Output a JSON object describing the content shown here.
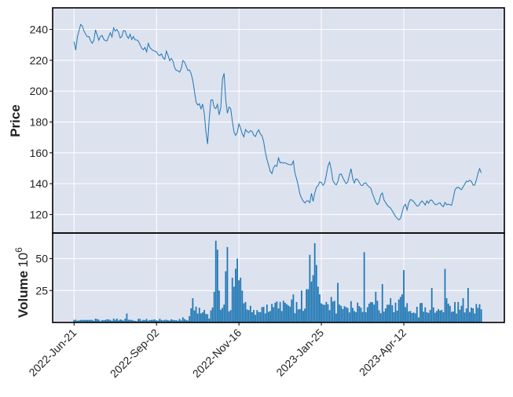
{
  "chart_data": {
    "type": "candlestick-line-volume",
    "price_panel": {
      "type": "line",
      "ylabel": "Price",
      "ylim": [
        108,
        254
      ],
      "yticks": [
        120,
        140,
        160,
        180,
        200,
        220,
        240
      ],
      "line_color": "#1f77b4",
      "grid": true
    },
    "volume_panel": {
      "type": "bar",
      "ylabel": "Volume",
      "y_scale_label": "10^6",
      "ylim": [
        0,
        70
      ],
      "yticks": [
        25,
        50
      ],
      "bar_color": "#1f77b4",
      "grid": true
    },
    "x_tick_labels": [
      "2022-Jun-21",
      "2022-Sep-02",
      "2022-Nov-16",
      "2023-Jan-25",
      "2023-Apr-12"
    ],
    "x_tick_index": [
      0,
      50,
      100,
      150,
      200
    ],
    "x_range": [
      -13,
      261
    ],
    "num_bars": 248,
    "price_keyframes": [
      [
        0,
        232
      ],
      [
        1,
        226
      ],
      [
        2,
        237
      ],
      [
        3,
        240
      ],
      [
        4,
        245
      ],
      [
        5,
        240
      ],
      [
        6,
        238
      ],
      [
        7,
        235
      ],
      [
        8,
        236
      ],
      [
        9,
        233
      ],
      [
        10,
        231
      ],
      [
        11,
        233
      ],
      [
        12,
        241
      ],
      [
        13,
        235
      ],
      [
        14,
        232
      ],
      [
        15,
        238
      ],
      [
        16,
        234
      ],
      [
        17,
        233
      ],
      [
        18,
        232
      ],
      [
        19,
        235
      ],
      [
        20,
        238
      ],
      [
        21,
        235
      ],
      [
        22,
        242
      ],
      [
        23,
        238
      ],
      [
        24,
        241
      ],
      [
        25,
        236
      ],
      [
        26,
        233
      ],
      [
        27,
        239
      ],
      [
        28,
        240
      ],
      [
        29,
        236
      ],
      [
        30,
        234
      ],
      [
        31,
        237
      ],
      [
        32,
        233
      ],
      [
        33,
        236
      ],
      [
        34,
        232
      ],
      [
        35,
        234
      ],
      [
        36,
        231
      ],
      [
        37,
        229
      ],
      [
        38,
        226
      ],
      [
        39,
        229
      ],
      [
        40,
        225
      ],
      [
        41,
        231
      ],
      [
        42,
        228
      ],
      [
        43,
        227
      ],
      [
        44,
        226
      ],
      [
        45,
        226
      ],
      [
        46,
        225
      ],
      [
        47,
        222
      ],
      [
        48,
        225
      ],
      [
        49,
        222
      ],
      [
        50,
        220
      ],
      [
        51,
        226
      ],
      [
        52,
        223
      ],
      [
        53,
        219
      ],
      [
        54,
        222
      ],
      [
        55,
        218
      ],
      [
        56,
        213
      ],
      [
        57,
        214
      ],
      [
        58,
        212
      ],
      [
        59,
        213
      ],
      [
        60,
        220
      ],
      [
        61,
        219
      ],
      [
        62,
        216
      ],
      [
        63,
        213
      ],
      [
        64,
        214
      ],
      [
        65,
        210
      ],
      [
        66,
        205
      ],
      [
        67,
        195
      ],
      [
        68,
        190
      ],
      [
        69,
        193
      ],
      [
        70,
        188
      ],
      [
        71,
        192
      ],
      [
        72,
        185
      ],
      [
        73,
        172
      ],
      [
        74,
        164
      ],
      [
        75,
        190
      ],
      [
        76,
        197
      ],
      [
        77,
        192
      ],
      [
        78,
        186
      ],
      [
        79,
        194
      ],
      [
        80,
        184
      ],
      [
        81,
        188
      ],
      [
        82,
        208
      ],
      [
        83,
        212
      ],
      [
        84,
        190
      ],
      [
        85,
        184
      ],
      [
        86,
        193
      ],
      [
        87,
        185
      ],
      [
        88,
        175
      ],
      [
        89,
        171
      ],
      [
        90,
        172
      ],
      [
        91,
        179
      ],
      [
        92,
        176
      ],
      [
        93,
        172
      ],
      [
        94,
        170
      ],
      [
        95,
        177
      ],
      [
        96,
        172
      ],
      [
        97,
        174
      ],
      [
        98,
        175
      ],
      [
        99,
        172
      ],
      [
        100,
        170
      ],
      [
        101,
        173
      ],
      [
        102,
        175
      ],
      [
        103,
        172
      ],
      [
        104,
        171
      ],
      [
        105,
        166
      ],
      [
        106,
        158
      ],
      [
        107,
        154
      ],
      [
        108,
        150
      ],
      [
        109,
        145
      ],
      [
        110,
        150
      ],
      [
        111,
        152
      ],
      [
        112,
        151
      ],
      [
        113,
        157
      ],
      [
        114,
        153
      ],
      [
        115,
        154
      ],
      [
        116,
        153
      ],
      [
        117,
        154
      ],
      [
        118,
        152
      ],
      [
        119,
        153
      ],
      [
        120,
        151
      ],
      [
        121,
        156
      ],
      [
        122,
        147
      ],
      [
        123,
        143
      ],
      [
        124,
        138
      ],
      [
        125,
        132
      ],
      [
        126,
        130
      ],
      [
        127,
        128
      ],
      [
        128,
        127
      ],
      [
        129,
        131
      ],
      [
        130,
        125
      ],
      [
        131,
        135
      ],
      [
        132,
        128
      ],
      [
        133,
        134
      ],
      [
        134,
        138
      ],
      [
        135,
        139
      ],
      [
        136,
        142
      ],
      [
        137,
        140
      ],
      [
        138,
        138
      ],
      [
        139,
        143
      ],
      [
        140,
        150
      ],
      [
        141,
        155
      ],
      [
        142,
        150
      ],
      [
        143,
        142
      ],
      [
        144,
        140
      ],
      [
        145,
        139
      ],
      [
        146,
        142
      ],
      [
        147,
        148
      ],
      [
        148,
        145
      ],
      [
        149,
        143
      ],
      [
        150,
        140
      ],
      [
        151,
        140
      ],
      [
        152,
        145
      ],
      [
        153,
        150
      ],
      [
        154,
        143
      ],
      [
        155,
        140
      ],
      [
        156,
        144
      ],
      [
        157,
        142
      ],
      [
        158,
        140
      ],
      [
        159,
        138
      ],
      [
        160,
        140
      ],
      [
        161,
        141
      ],
      [
        162,
        139
      ],
      [
        163,
        138
      ],
      [
        164,
        137
      ],
      [
        165,
        133
      ],
      [
        166,
        130
      ],
      [
        167,
        127
      ],
      [
        168,
        126
      ],
      [
        169,
        130
      ],
      [
        170,
        136
      ],
      [
        171,
        130
      ],
      [
        172,
        128
      ],
      [
        173,
        126
      ],
      [
        174,
        125
      ],
      [
        175,
        124
      ],
      [
        176,
        122
      ],
      [
        177,
        120
      ],
      [
        178,
        118
      ],
      [
        179,
        117
      ],
      [
        180,
        116
      ],
      [
        181,
        120
      ],
      [
        182,
        125
      ],
      [
        183,
        127
      ],
      [
        184,
        123
      ],
      [
        185,
        128
      ],
      [
        186,
        130
      ],
      [
        187,
        129
      ],
      [
        188,
        128
      ],
      [
        189,
        126
      ],
      [
        190,
        125
      ],
      [
        191,
        127
      ],
      [
        192,
        129
      ],
      [
        193,
        128
      ],
      [
        194,
        126
      ],
      [
        195,
        129
      ],
      [
        196,
        127
      ],
      [
        197,
        130
      ],
      [
        198,
        129
      ],
      [
        199,
        127
      ],
      [
        200,
        126
      ],
      [
        201,
        127
      ],
      [
        202,
        128
      ],
      [
        203,
        126
      ],
      [
        204,
        125
      ],
      [
        205,
        128
      ],
      [
        206,
        126
      ],
      [
        207,
        127
      ],
      [
        208,
        126
      ],
      [
        209,
        126
      ],
      [
        210,
        135
      ],
      [
        211,
        137
      ],
      [
        212,
        138
      ],
      [
        213,
        137
      ],
      [
        214,
        136
      ],
      [
        215,
        138
      ],
      [
        216,
        140
      ],
      [
        217,
        142
      ],
      [
        218,
        141
      ],
      [
        219,
        143
      ],
      [
        220,
        140
      ],
      [
        221,
        138
      ],
      [
        222,
        141
      ],
      [
        223,
        146
      ],
      [
        224,
        150
      ],
      [
        225,
        147
      ]
    ],
    "volume_spikes": [
      [
        4,
        2
      ],
      [
        5,
        2
      ],
      [
        6,
        2
      ],
      [
        7,
        2
      ],
      [
        8,
        2
      ],
      [
        10,
        2
      ],
      [
        12,
        3
      ],
      [
        15,
        1
      ],
      [
        17,
        2
      ],
      [
        20,
        2
      ],
      [
        22,
        3
      ],
      [
        24,
        3
      ],
      [
        26,
        2
      ],
      [
        28,
        3
      ],
      [
        29,
        7
      ],
      [
        32,
        2
      ],
      [
        35,
        1
      ],
      [
        38,
        2
      ],
      [
        43,
        2
      ],
      [
        50,
        2
      ],
      [
        55,
        2
      ],
      [
        60,
        4
      ],
      [
        64,
        5
      ],
      [
        66,
        19
      ],
      [
        68,
        7
      ],
      [
        75,
        3
      ],
      [
        77,
        24
      ],
      [
        78,
        64
      ],
      [
        79,
        57
      ],
      [
        80,
        25
      ],
      [
        81,
        10
      ],
      [
        84,
        40
      ],
      [
        85,
        59
      ],
      [
        87,
        35
      ],
      [
        88,
        28
      ],
      [
        89,
        42
      ],
      [
        90,
        50
      ],
      [
        91,
        33
      ],
      [
        92,
        35
      ],
      [
        93,
        25
      ],
      [
        94,
        15
      ],
      [
        95,
        16
      ],
      [
        98,
        8
      ],
      [
        100,
        6
      ],
      [
        104,
        12
      ],
      [
        107,
        14
      ],
      [
        108,
        9
      ],
      [
        110,
        12
      ],
      [
        113,
        11
      ],
      [
        115,
        9
      ],
      [
        116,
        17
      ],
      [
        120,
        18
      ],
      [
        121,
        22
      ],
      [
        123,
        16
      ],
      [
        126,
        25
      ],
      [
        128,
        26
      ],
      [
        129,
        26
      ],
      [
        130,
        53
      ],
      [
        131,
        32
      ],
      [
        132,
        37
      ],
      [
        133,
        62
      ],
      [
        134,
        45
      ],
      [
        135,
        28
      ],
      [
        136,
        22
      ],
      [
        137,
        15
      ],
      [
        138,
        14
      ],
      [
        139,
        16
      ],
      [
        142,
        20
      ],
      [
        144,
        17
      ],
      [
        146,
        31
      ],
      [
        147,
        14
      ],
      [
        148,
        13
      ],
      [
        150,
        12
      ],
      [
        155,
        9
      ],
      [
        156,
        8
      ],
      [
        160,
        55
      ],
      [
        161,
        8
      ],
      [
        162,
        12
      ],
      [
        164,
        16
      ],
      [
        166,
        14
      ],
      [
        167,
        24
      ],
      [
        168,
        17
      ],
      [
        170,
        30
      ],
      [
        172,
        11
      ],
      [
        175,
        19
      ],
      [
        177,
        8
      ],
      [
        179,
        18
      ],
      [
        180,
        20
      ],
      [
        181,
        22
      ],
      [
        182,
        41
      ],
      [
        183,
        12
      ],
      [
        186,
        9
      ],
      [
        190,
        4
      ],
      [
        195,
        8
      ],
      [
        198,
        27
      ],
      [
        200,
        9
      ],
      [
        204,
        8
      ],
      [
        205,
        42
      ],
      [
        206,
        19
      ],
      [
        208,
        13
      ],
      [
        210,
        16
      ],
      [
        212,
        16
      ],
      [
        213,
        10
      ],
      [
        215,
        19
      ],
      [
        218,
        27
      ]
    ]
  }
}
